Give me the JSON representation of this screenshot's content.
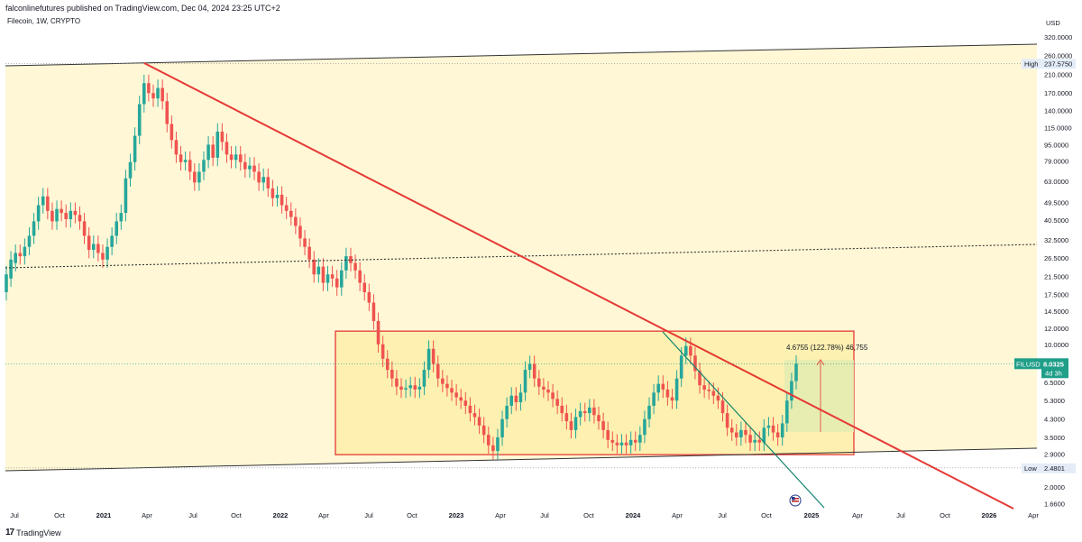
{
  "header": {
    "published": "falconlinefutures published on TradingView.com, Dec 04, 2024 23:25 UTC+2"
  },
  "symbol": {
    "title": "Filecoin, 1W, CRYPTO"
  },
  "footer": {
    "brand": "TradingView",
    "brand_mark": "17"
  },
  "colors": {
    "background": "#ffffff",
    "channel_fill": "#fff7d6",
    "box_fill": "#fdf0b0",
    "box_border": "#e53935",
    "downtrend": "#e53935",
    "green_line": "#12846f",
    "candle_up": "#26a69a",
    "candle_down": "#ef5350",
    "last_price_badge": "#1f9e89",
    "measure_fill": "#e3ecb0"
  },
  "chart_data": {
    "type": "candlestick",
    "symbol": "FILUSD",
    "interval": "1W",
    "currency": "USD",
    "scale": "log",
    "ylim": [
      1.5,
      340
    ],
    "price_ticks": [
      "320.0000",
      "260.0000",
      "210.0000",
      "170.0000",
      "140.0000",
      "115.0000",
      "95.0000",
      "79.0000",
      "63.0000",
      "49.5000",
      "40.5000",
      "32.5000",
      "26.5000",
      "21.5000",
      "17.5000",
      "14.5000",
      "12.0000",
      "10.0000",
      "6.5000",
      "5.3000",
      "4.3000",
      "3.5000",
      "2.9000",
      "2.0000",
      "1.6600"
    ],
    "time_ticks": [
      "Jul",
      "Oct",
      "2021",
      "Apr",
      "Jul",
      "Oct",
      "2022",
      "Apr",
      "Jul",
      "Oct",
      "2023",
      "Apr",
      "Jul",
      "Oct",
      "2024",
      "Apr",
      "Jul",
      "Oct",
      "2025",
      "Apr",
      "Jul",
      "Oct",
      "2026",
      "Apr"
    ],
    "high": {
      "label": "High",
      "value": "237.5750"
    },
    "low": {
      "label": "Low",
      "value": "2.4801"
    },
    "last": {
      "label": "FILUSD",
      "value": "8.0325",
      "countdown": "4d 3h"
    },
    "measure_label": "4.6755 (122.78%) 46,755",
    "candles": [
      [
        18,
        22
      ],
      [
        21,
        26
      ],
      [
        25,
        28
      ],
      [
        28,
        27
      ],
      [
        27,
        30
      ],
      [
        30,
        34
      ],
      [
        34,
        40
      ],
      [
        40,
        48
      ],
      [
        48,
        53
      ],
      [
        53,
        45
      ],
      [
        45,
        40
      ],
      [
        40,
        46
      ],
      [
        46,
        44
      ],
      [
        44,
        41
      ],
      [
        41,
        45
      ],
      [
        45,
        43
      ],
      [
        43,
        40
      ],
      [
        40,
        34
      ],
      [
        34,
        29
      ],
      [
        29,
        31
      ],
      [
        31,
        28
      ],
      [
        28,
        26
      ],
      [
        26,
        30
      ],
      [
        30,
        34
      ],
      [
        34,
        40
      ],
      [
        40,
        44
      ],
      [
        44,
        65
      ],
      [
        65,
        78
      ],
      [
        78,
        105
      ],
      [
        105,
        150
      ],
      [
        150,
        190
      ],
      [
        190,
        170
      ],
      [
        170,
        160
      ],
      [
        160,
        180
      ],
      [
        180,
        155
      ],
      [
        155,
        120
      ],
      [
        120,
        100
      ],
      [
        100,
        85
      ],
      [
        85,
        78
      ],
      [
        78,
        80
      ],
      [
        80,
        70
      ],
      [
        70,
        62
      ],
      [
        62,
        70
      ],
      [
        70,
        80
      ],
      [
        80,
        95
      ],
      [
        95,
        82
      ],
      [
        82,
        110
      ],
      [
        110,
        98
      ],
      [
        98,
        85
      ],
      [
        85,
        80
      ],
      [
        80,
        85
      ],
      [
        85,
        78
      ],
      [
        78,
        72
      ],
      [
        72,
        75
      ],
      [
        75,
        70
      ],
      [
        70,
        62
      ],
      [
        62,
        66
      ],
      [
        66,
        58
      ],
      [
        58,
        52
      ],
      [
        52,
        54
      ],
      [
        54,
        48
      ],
      [
        48,
        45
      ],
      [
        45,
        42
      ],
      [
        42,
        38
      ],
      [
        38,
        33
      ],
      [
        33,
        30
      ],
      [
        30,
        26
      ],
      [
        26,
        22
      ],
      [
        22,
        24
      ],
      [
        24,
        20
      ],
      [
        20,
        22
      ],
      [
        22,
        21
      ],
      [
        21,
        19
      ],
      [
        19,
        23
      ],
      [
        23,
        27
      ],
      [
        27,
        25
      ],
      [
        25,
        23
      ],
      [
        23,
        20
      ],
      [
        20,
        18
      ],
      [
        18,
        16
      ],
      [
        16,
        13
      ],
      [
        13,
        10
      ],
      [
        10,
        8.5
      ],
      [
        8.5,
        7.5
      ],
      [
        7.5,
        6.8
      ],
      [
        6.8,
        6.2
      ],
      [
        6.2,
        6.0
      ],
      [
        6.0,
        6.1
      ],
      [
        6.1,
        6.3
      ],
      [
        6.3,
        6.0
      ],
      [
        6.0,
        6.2
      ],
      [
        6.2,
        7.5
      ],
      [
        7.5,
        9.5
      ],
      [
        9.5,
        8.0
      ],
      [
        8.0,
        6.8
      ],
      [
        6.8,
        6.4
      ],
      [
        6.4,
        6.1
      ],
      [
        6.1,
        5.8
      ],
      [
        5.8,
        5.5
      ],
      [
        5.5,
        5.3
      ],
      [
        5.3,
        5.0
      ],
      [
        5.0,
        4.6
      ],
      [
        4.6,
        4.4
      ],
      [
        4.4,
        4.0
      ],
      [
        4.0,
        3.6
      ],
      [
        3.6,
        3.2
      ],
      [
        3.2,
        3.0
      ],
      [
        3.0,
        3.5
      ],
      [
        3.5,
        4.3
      ],
      [
        4.3,
        5.0
      ],
      [
        5.0,
        5.6
      ],
      [
        5.6,
        5.2
      ],
      [
        5.2,
        5.8
      ],
      [
        5.8,
        7.5
      ],
      [
        7.5,
        8.0
      ],
      [
        8.0,
        6.8
      ],
      [
        6.8,
        6.2
      ],
      [
        6.2,
        6.0
      ],
      [
        6.0,
        5.8
      ],
      [
        5.8,
        5.4
      ],
      [
        5.4,
        5.0
      ],
      [
        5.0,
        4.6
      ],
      [
        4.6,
        4.2
      ],
      [
        4.2,
        3.8
      ],
      [
        3.8,
        4.4
      ],
      [
        4.4,
        4.7
      ],
      [
        4.7,
        4.6
      ],
      [
        4.6,
        4.9
      ],
      [
        4.9,
        4.5
      ],
      [
        4.5,
        4.2
      ],
      [
        4.2,
        3.8
      ],
      [
        3.8,
        3.4
      ],
      [
        3.4,
        3.3
      ],
      [
        3.3,
        3.2
      ],
      [
        3.2,
        3.3
      ],
      [
        3.3,
        3.2
      ],
      [
        3.2,
        3.4
      ],
      [
        3.4,
        3.3
      ],
      [
        3.3,
        3.6
      ],
      [
        3.6,
        4.3
      ],
      [
        4.3,
        5.0
      ],
      [
        5.0,
        5.8
      ],
      [
        5.8,
        6.4
      ],
      [
        6.4,
        6.0
      ],
      [
        6.0,
        5.5
      ],
      [
        5.5,
        5.3
      ],
      [
        5.3,
        6.8
      ],
      [
        6.8,
        8.8
      ],
      [
        8.8,
        9.8
      ],
      [
        9.8,
        8.8
      ],
      [
        8.8,
        7.4
      ],
      [
        7.4,
        6.3
      ],
      [
        6.3,
        6.0
      ],
      [
        6.0,
        5.9
      ],
      [
        5.9,
        5.6
      ],
      [
        5.6,
        5.3
      ],
      [
        5.3,
        4.6
      ],
      [
        4.6,
        3.9
      ],
      [
        3.9,
        3.7
      ],
      [
        3.7,
        3.5
      ],
      [
        3.5,
        3.8
      ],
      [
        3.8,
        3.6
      ],
      [
        3.6,
        3.3
      ],
      [
        3.3,
        3.4
      ],
      [
        3.4,
        3.3
      ],
      [
        3.3,
        3.9
      ],
      [
        3.9,
        4.0
      ],
      [
        4.0,
        3.7
      ],
      [
        3.7,
        3.5
      ],
      [
        3.5,
        4.1
      ],
      [
        4.1,
        5.3
      ],
      [
        5.3,
        6.6
      ],
      [
        6.6,
        8.03
      ]
    ]
  }
}
